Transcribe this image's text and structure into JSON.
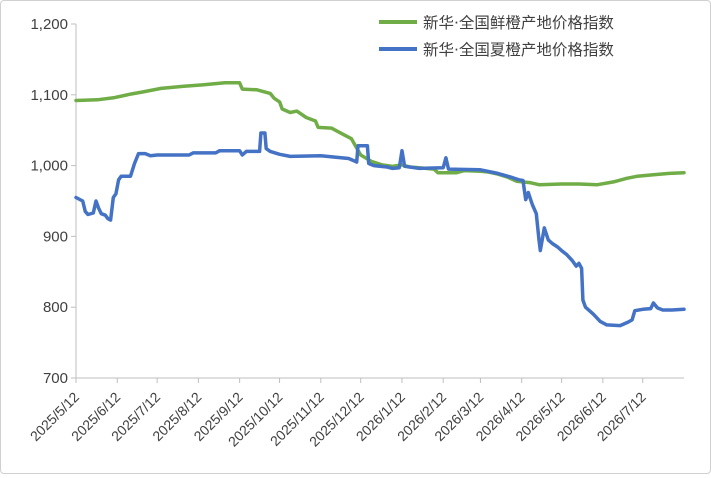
{
  "chart_data": {
    "type": "line",
    "title": "",
    "xlabel": "",
    "ylabel": "",
    "ylim": [
      700,
      1200
    ],
    "yticks": [
      "1,200",
      "1,100",
      "1,000",
      "900",
      "800",
      "700"
    ],
    "ytick_values": [
      1200,
      1100,
      1000,
      900,
      800,
      700
    ],
    "xlim": [
      "2025-05-12",
      "2026-08-12"
    ],
    "xticks": [
      "2025/5/12",
      "2025/6/12",
      "2025/7/12",
      "2025/8/12",
      "2025/9/12",
      "2025/10/12",
      "2025/11/12",
      "2025/12/12",
      "2026/1/12",
      "2026/2/12",
      "2026/3/12",
      "2026/4/12",
      "2026/5/12",
      "2026/6/12",
      "2026/7/12"
    ],
    "xtick_dates": [
      "2025-05-12",
      "2025-06-12",
      "2025-07-12",
      "2025-08-12",
      "2025-09-12",
      "2025-10-12",
      "2025-11-12",
      "2025-12-12",
      "2026-01-12",
      "2026-02-12",
      "2026-03-12",
      "2026-04-12",
      "2026-05-12",
      "2026-06-12",
      "2026-07-12"
    ],
    "grid": false,
    "legend_position": "top-right",
    "series": [
      {
        "name": "新华·全国鲜橙产地价格指数",
        "color": "#70ad47",
        "points": [
          [
            "2025-05-12",
            1092
          ],
          [
            "2025-05-28",
            1093
          ],
          [
            "2025-06-10",
            1096
          ],
          [
            "2025-06-22",
            1101
          ],
          [
            "2025-07-01",
            1104
          ],
          [
            "2025-07-15",
            1109
          ],
          [
            "2025-08-01",
            1112
          ],
          [
            "2025-08-15",
            1114
          ],
          [
            "2025-09-01",
            1117
          ],
          [
            "2025-09-12",
            1117
          ],
          [
            "2025-09-14",
            1108
          ],
          [
            "2025-09-25",
            1107
          ],
          [
            "2025-10-05",
            1102
          ],
          [
            "2025-10-08",
            1095
          ],
          [
            "2025-10-12",
            1090
          ],
          [
            "2025-10-14",
            1080
          ],
          [
            "2025-10-20",
            1075
          ],
          [
            "2025-10-25",
            1077
          ],
          [
            "2025-11-01",
            1068
          ],
          [
            "2025-11-08",
            1063
          ],
          [
            "2025-11-10",
            1054
          ],
          [
            "2025-11-20",
            1053
          ],
          [
            "2025-11-30",
            1043
          ],
          [
            "2025-12-05",
            1038
          ],
          [
            "2025-12-08",
            1028
          ],
          [
            "2025-12-12",
            1015
          ],
          [
            "2025-12-20",
            1006
          ],
          [
            "2025-12-28",
            1001
          ],
          [
            "2026-01-05",
            999
          ],
          [
            "2026-01-12",
            1001
          ],
          [
            "2026-01-18",
            998
          ],
          [
            "2026-01-25",
            997
          ],
          [
            "2026-02-05",
            995
          ],
          [
            "2026-02-08",
            990
          ],
          [
            "2026-02-22",
            990
          ],
          [
            "2026-02-28",
            993
          ],
          [
            "2026-03-12",
            992
          ],
          [
            "2026-03-18",
            991
          ],
          [
            "2026-03-25",
            988
          ],
          [
            "2026-04-01",
            984
          ],
          [
            "2026-04-08",
            978
          ],
          [
            "2026-04-18",
            976
          ],
          [
            "2026-04-25",
            973
          ],
          [
            "2026-05-12",
            974
          ],
          [
            "2026-05-25",
            974
          ],
          [
            "2026-06-08",
            973
          ],
          [
            "2026-06-20",
            977
          ],
          [
            "2026-06-30",
            982
          ],
          [
            "2026-07-08",
            985
          ],
          [
            "2026-07-20",
            987
          ],
          [
            "2026-08-01",
            989
          ],
          [
            "2026-08-12",
            990
          ]
        ]
      },
      {
        "name": "新华·全国夏橙产地价格指数",
        "color": "#4472c4",
        "points": [
          [
            "2025-05-12",
            955
          ],
          [
            "2025-05-17",
            950
          ],
          [
            "2025-05-19",
            935
          ],
          [
            "2025-05-21",
            931
          ],
          [
            "2025-05-25",
            933
          ],
          [
            "2025-05-27",
            950
          ],
          [
            "2025-05-29",
            940
          ],
          [
            "2025-05-31",
            932
          ],
          [
            "2025-06-03",
            930
          ],
          [
            "2025-06-05",
            925
          ],
          [
            "2025-06-07",
            923
          ],
          [
            "2025-06-09",
            955
          ],
          [
            "2025-06-11",
            960
          ],
          [
            "2025-06-13",
            980
          ],
          [
            "2025-06-15",
            985
          ],
          [
            "2025-06-22",
            985
          ],
          [
            "2025-06-25",
            1003
          ],
          [
            "2025-06-28",
            1017
          ],
          [
            "2025-07-03",
            1017
          ],
          [
            "2025-07-07",
            1014
          ],
          [
            "2025-07-12",
            1015
          ],
          [
            "2025-08-05",
            1015
          ],
          [
            "2025-08-08",
            1018
          ],
          [
            "2025-08-25",
            1018
          ],
          [
            "2025-08-28",
            1021
          ],
          [
            "2025-09-12",
            1021
          ],
          [
            "2025-09-14",
            1015
          ],
          [
            "2025-09-17",
            1020
          ],
          [
            "2025-09-27",
            1020
          ],
          [
            "2025-09-28",
            1046
          ],
          [
            "2025-10-01",
            1046
          ],
          [
            "2025-10-02",
            1024
          ],
          [
            "2025-10-05",
            1020
          ],
          [
            "2025-10-12",
            1016
          ],
          [
            "2025-10-20",
            1013
          ],
          [
            "2025-11-12",
            1014
          ],
          [
            "2025-12-03",
            1010
          ],
          [
            "2025-12-08",
            1006
          ],
          [
            "2025-12-09",
            1005
          ],
          [
            "2025-12-10",
            1028
          ],
          [
            "2025-12-12",
            1028
          ],
          [
            "2025-12-17",
            1028
          ],
          [
            "2025-12-18",
            1003
          ],
          [
            "2025-12-22",
            1000
          ],
          [
            "2026-01-01",
            998
          ],
          [
            "2026-01-05",
            996
          ],
          [
            "2026-01-10",
            997
          ],
          [
            "2026-01-12",
            1021
          ],
          [
            "2026-01-14",
            999
          ],
          [
            "2026-01-25",
            996
          ],
          [
            "2026-02-12",
            997
          ],
          [
            "2026-02-14",
            1011
          ],
          [
            "2026-02-16",
            995
          ],
          [
            "2026-03-12",
            994
          ],
          [
            "2026-03-25",
            989
          ],
          [
            "2026-04-05",
            983
          ],
          [
            "2026-04-10",
            980
          ],
          [
            "2026-04-13",
            979
          ],
          [
            "2026-04-15",
            952
          ],
          [
            "2026-04-17",
            962
          ],
          [
            "2026-04-20",
            945
          ],
          [
            "2026-04-23",
            932
          ],
          [
            "2026-04-25",
            895
          ],
          [
            "2026-04-26",
            880
          ],
          [
            "2026-04-29",
            912
          ],
          [
            "2026-05-02",
            895
          ],
          [
            "2026-05-05",
            890
          ],
          [
            "2026-05-09",
            885
          ],
          [
            "2026-05-12",
            880
          ],
          [
            "2026-05-16",
            874
          ],
          [
            "2026-05-20",
            866
          ],
          [
            "2026-05-23",
            858
          ],
          [
            "2026-05-25",
            862
          ],
          [
            "2026-05-27",
            855
          ],
          [
            "2026-05-28",
            810
          ],
          [
            "2026-05-30",
            800
          ],
          [
            "2026-06-05",
            790
          ],
          [
            "2026-06-10",
            780
          ],
          [
            "2026-06-15",
            775
          ],
          [
            "2026-06-25",
            774
          ],
          [
            "2026-07-01",
            779
          ],
          [
            "2026-07-04",
            782
          ],
          [
            "2026-07-06",
            795
          ],
          [
            "2026-07-12",
            797
          ],
          [
            "2026-07-18",
            798
          ],
          [
            "2026-07-20",
            806
          ],
          [
            "2026-07-23",
            799
          ],
          [
            "2026-07-27",
            796
          ],
          [
            "2026-08-03",
            796
          ],
          [
            "2026-08-12",
            797
          ]
        ]
      }
    ]
  }
}
